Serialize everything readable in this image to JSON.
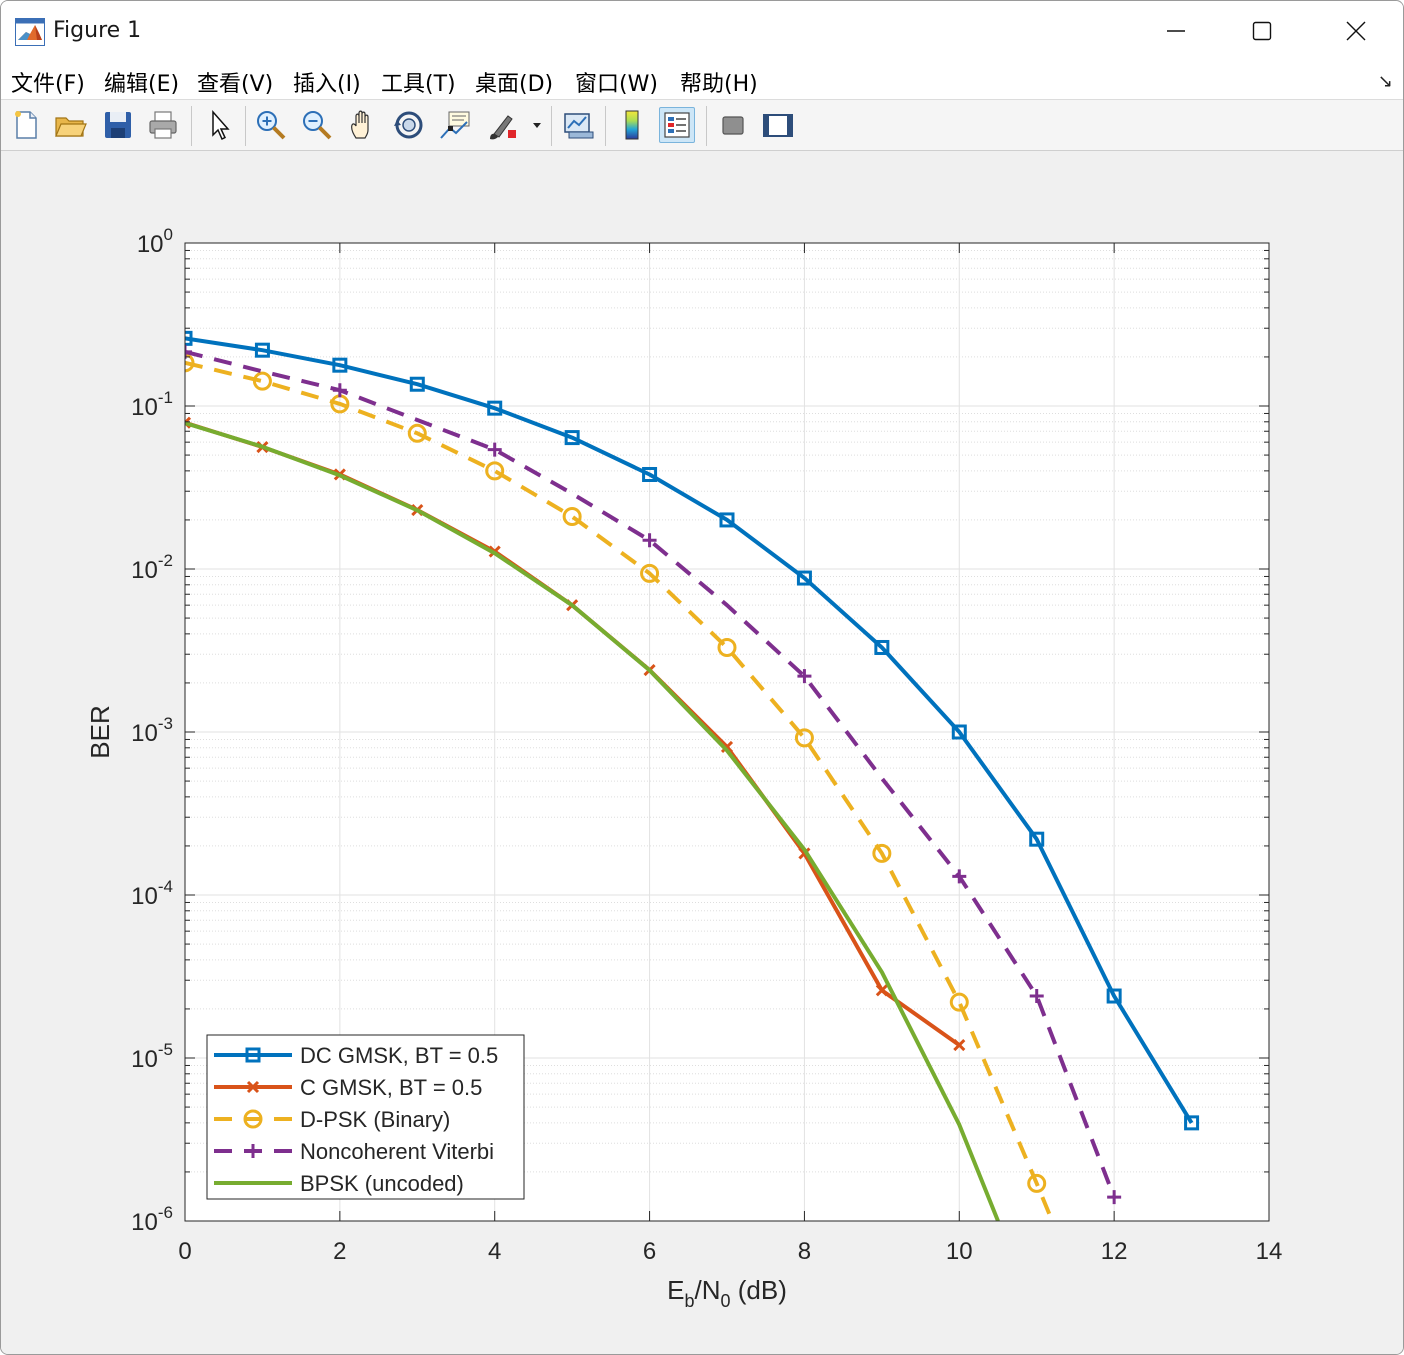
{
  "window": {
    "title": "Figure 1",
    "icons": {
      "app": "matlab-logo-icon",
      "minimize": "minimize-icon",
      "maximize": "maximize-icon",
      "close": "close-icon"
    }
  },
  "menubar": {
    "items": [
      {
        "label": "文件(F)",
        "mnemonic": "F"
      },
      {
        "label": "编辑(E)",
        "mnemonic": "E"
      },
      {
        "label": "查看(V)",
        "mnemonic": "V"
      },
      {
        "label": "插入(I)",
        "mnemonic": "I"
      },
      {
        "label": "工具(T)",
        "mnemonic": "T"
      },
      {
        "label": "桌面(D)",
        "mnemonic": "D"
      },
      {
        "label": "窗口(W)",
        "mnemonic": "W"
      },
      {
        "label": "帮助(H)",
        "mnemonic": "H"
      }
    ],
    "dock_icon": "dock-arrow-icon",
    "dock_glyph": "↘"
  },
  "toolbar": {
    "buttons": [
      {
        "icon": "new-figure-icon"
      },
      {
        "icon": "open-file-icon"
      },
      {
        "icon": "save-icon"
      },
      {
        "icon": "print-icon"
      },
      {
        "icon": "pointer-icon"
      },
      {
        "icon": "zoom-in-icon"
      },
      {
        "icon": "zoom-out-icon"
      },
      {
        "icon": "pan-hand-icon"
      },
      {
        "icon": "rotate-3d-icon"
      },
      {
        "icon": "data-cursor-icon"
      },
      {
        "icon": "brush-icon"
      },
      {
        "icon": "brush-dropdown-icon"
      },
      {
        "icon": "link-plot-icon"
      },
      {
        "icon": "colorbar-icon"
      },
      {
        "icon": "legend-icon",
        "active": true
      },
      {
        "icon": "hide-plot-tools-icon"
      },
      {
        "icon": "show-plot-tools-icon"
      }
    ]
  },
  "chart_data": {
    "type": "line",
    "title": "",
    "xlabel": {
      "base": "E",
      "sub1": "b",
      "mid": "/N",
      "sub2": "0",
      "tail": " (dB)"
    },
    "ylabel": "BER",
    "xlim": [
      0,
      14
    ],
    "ylim": [
      1e-06,
      1
    ],
    "yscale": "log",
    "grid": true,
    "minor_grid": true,
    "xticks": [
      "0",
      "2",
      "4",
      "6",
      "8",
      "10",
      "12",
      "14"
    ],
    "yticks": [
      {
        "base": "10",
        "exp": "0"
      },
      {
        "base": "10",
        "exp": "-1"
      },
      {
        "base": "10",
        "exp": "-2"
      },
      {
        "base": "10",
        "exp": "-3"
      },
      {
        "base": "10",
        "exp": "-4"
      },
      {
        "base": "10",
        "exp": "-5"
      },
      {
        "base": "10",
        "exp": "-6"
      }
    ],
    "legend_position": "bottom-left",
    "series": [
      {
        "name": "DC GMSK, BT = 0.5",
        "color": "#0072BD",
        "linestyle": "solid",
        "marker": "square",
        "x": [
          0,
          1,
          2,
          3,
          4,
          5,
          6,
          7,
          8,
          9,
          10,
          11,
          12,
          13
        ],
        "y": [
          0.26,
          0.22,
          0.178,
          0.136,
          0.097,
          0.064,
          0.038,
          0.02,
          0.0088,
          0.0033,
          0.001,
          0.00022,
          2.4e-05,
          4e-06
        ]
      },
      {
        "name": "C GMSK, BT = 0.5",
        "color": "#D95319",
        "linestyle": "solid",
        "marker": "x",
        "x": [
          0,
          1,
          2,
          3,
          4,
          5,
          6,
          7,
          8,
          9,
          10
        ],
        "y": [
          0.079,
          0.056,
          0.038,
          0.023,
          0.0128,
          0.006,
          0.0024,
          0.00081,
          0.00018,
          2.6e-05,
          1.2e-05
        ]
      },
      {
        "name": "D-PSK (Binary)",
        "color": "#EDB120",
        "linestyle": "dashed",
        "marker": "circle",
        "x": [
          0,
          1,
          2,
          3,
          4,
          5,
          6,
          7,
          8,
          9,
          10,
          11,
          11.2
        ],
        "y": [
          0.184,
          0.142,
          0.103,
          0.068,
          0.04,
          0.021,
          0.0094,
          0.0033,
          0.00092,
          0.00018,
          2.2e-05,
          1.7e-06,
          1e-06
        ],
        "markers_on": 12
      },
      {
        "name": "Noncoherent Viterbi",
        "color": "#7E2F8E",
        "linestyle": "dashed",
        "marker": "plus",
        "x": [
          0,
          1,
          2,
          3,
          4,
          5,
          6,
          7,
          8,
          9,
          10,
          11,
          12
        ],
        "y": [
          0.215,
          0.163,
          0.125,
          0.082,
          0.054,
          0.029,
          0.015,
          0.006,
          0.0022,
          0.00052,
          0.00013,
          2.4e-05,
          1.4e-06
        ],
        "marker_indices": [
          0,
          2,
          4,
          6,
          8,
          10,
          11,
          12
        ]
      },
      {
        "name": "BPSK (uncoded)",
        "color": "#77AC30",
        "linestyle": "solid",
        "marker": "none",
        "x": [
          0,
          1,
          2,
          3,
          4,
          5,
          6,
          7,
          8,
          9,
          10,
          10.5
        ],
        "y": [
          0.0786,
          0.0563,
          0.0375,
          0.0229,
          0.0125,
          0.006,
          0.00239,
          0.00077,
          0.00019,
          3.36e-05,
          3.9e-06,
          1e-06
        ]
      }
    ]
  }
}
